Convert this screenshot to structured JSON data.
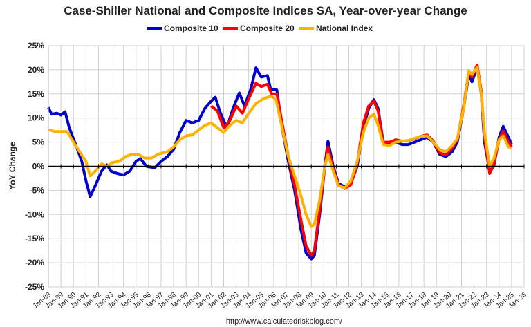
{
  "chart_data": {
    "type": "line",
    "title": "Case-Shiller National and Composite Indices SA, Year-over-year Change",
    "ylabel": "YoY Change",
    "xlabel": "",
    "source": "http://www.calculatedriskblog.com/",
    "ylim": [
      -25,
      25
    ],
    "yticks": [
      "25%",
      "20%",
      "15%",
      "10%",
      "5%",
      "0%",
      "-5%",
      "-10%",
      "-15%",
      "-20%",
      "-25%"
    ],
    "xticks": [
      "Jan-88",
      "Jan-89",
      "Jan-90",
      "Jan-91",
      "Jan-92",
      "Jan-93",
      "Jan-94",
      "Jan-95",
      "Jan-96",
      "Jan-97",
      "Jan-98",
      "Jan-99",
      "Jan-00",
      "Jan-01",
      "Jan-02",
      "Jan-03",
      "Jan-04",
      "Jan-05",
      "Jan-06",
      "Jan-07",
      "Jan-08",
      "Jan-09",
      "Jan-10",
      "Jan-11",
      "Jan-12",
      "Jan-13",
      "Jan-14",
      "Jan-15",
      "Jan-16",
      "Jan-17",
      "Jan-18",
      "Jan-19",
      "Jan-20",
      "Jan-21",
      "Jan-22",
      "Jan-23",
      "Jan-24",
      "Jan-25",
      "Jan-26"
    ],
    "grid": true,
    "legend": "top",
    "series": [
      {
        "name": "Composite 10",
        "color": "#0000CC",
        "points": [
          [
            "1988-01",
            12.2
          ],
          [
            "1988-04",
            10.8
          ],
          [
            "1988-09",
            11
          ],
          [
            "1989-01",
            10.6
          ],
          [
            "1989-05",
            11.3
          ],
          [
            "1989-09",
            8
          ],
          [
            "1990-04",
            4
          ],
          [
            "1990-09",
            1
          ],
          [
            "1991-01",
            -3
          ],
          [
            "1991-05",
            -6.3
          ],
          [
            "1991-10",
            -4
          ],
          [
            "1992-04",
            -1
          ],
          [
            "1992-09",
            0.3
          ],
          [
            "1993-01",
            -1
          ],
          [
            "1993-07",
            -1.5
          ],
          [
            "1994-01",
            -1.8
          ],
          [
            "1994-07",
            -1
          ],
          [
            "1995-01",
            1
          ],
          [
            "1995-05",
            1.6
          ],
          [
            "1995-11",
            0
          ],
          [
            "1996-07",
            -0.3
          ],
          [
            "1997-01",
            1
          ],
          [
            "1997-07",
            2
          ],
          [
            "1998-01",
            3.5
          ],
          [
            "1998-07",
            7
          ],
          [
            "1999-01",
            9.5
          ],
          [
            "1999-07",
            9
          ],
          [
            "2000-01",
            9.5
          ],
          [
            "2000-07",
            12
          ],
          [
            "2001-01",
            13.5
          ],
          [
            "2001-05",
            14.3
          ],
          [
            "2001-10",
            11
          ],
          [
            "2002-04",
            8
          ],
          [
            "2002-10",
            12
          ],
          [
            "2003-04",
            15.2
          ],
          [
            "2003-09",
            12.5
          ],
          [
            "2004-03",
            16
          ],
          [
            "2004-08",
            20.4
          ],
          [
            "2005-01",
            18.5
          ],
          [
            "2005-07",
            18.8
          ],
          [
            "2005-10",
            16
          ],
          [
            "2006-04",
            15.8
          ],
          [
            "2006-09",
            8
          ],
          [
            "2007-03",
            1
          ],
          [
            "2007-09",
            -5
          ],
          [
            "2008-03",
            -13
          ],
          [
            "2008-08",
            -18
          ],
          [
            "2009-01",
            -19.2
          ],
          [
            "2009-04",
            -18.5
          ],
          [
            "2009-09",
            -10
          ],
          [
            "2010-02",
            0
          ],
          [
            "2010-05",
            5.2
          ],
          [
            "2010-10",
            0
          ],
          [
            "2011-03",
            -3.5
          ],
          [
            "2011-09",
            -4.3
          ],
          [
            "2012-03",
            -3.5
          ],
          [
            "2012-09",
            0
          ],
          [
            "2013-03",
            8
          ],
          [
            "2013-08",
            12
          ],
          [
            "2014-01",
            13.8
          ],
          [
            "2014-05",
            12
          ],
          [
            "2014-10",
            5
          ],
          [
            "2015-04",
            4.5
          ],
          [
            "2015-10",
            5
          ],
          [
            "2016-04",
            4.5
          ],
          [
            "2016-10",
            4.5
          ],
          [
            "2017-04",
            5
          ],
          [
            "2017-10",
            5.5
          ],
          [
            "2018-04",
            6
          ],
          [
            "2018-10",
            5
          ],
          [
            "2019-04",
            2.5
          ],
          [
            "2019-10",
            2
          ],
          [
            "2020-04",
            3
          ],
          [
            "2020-09",
            5
          ],
          [
            "2021-03",
            12
          ],
          [
            "2021-08",
            19
          ],
          [
            "2021-11",
            17.5
          ],
          [
            "2022-04",
            20.5
          ],
          [
            "2022-08",
            15
          ],
          [
            "2022-11",
            5
          ],
          [
            "2023-04",
            -1
          ],
          [
            "2023-08",
            0
          ],
          [
            "2024-01",
            6
          ],
          [
            "2024-05",
            8.3
          ],
          [
            "2024-10",
            6
          ],
          [
            "2025-01",
            4.5
          ]
        ]
      },
      {
        "name": "Composite 20",
        "color": "#FF0000",
        "points": [
          [
            "2001-01",
            12.5
          ],
          [
            "2001-07",
            11.5
          ],
          [
            "2002-01",
            8
          ],
          [
            "2002-07",
            9.5
          ],
          [
            "2003-01",
            12.5
          ],
          [
            "2003-07",
            11
          ],
          [
            "2004-01",
            14
          ],
          [
            "2004-08",
            17.2
          ],
          [
            "2005-01",
            16.5
          ],
          [
            "2005-07",
            17
          ],
          [
            "2005-11",
            15
          ],
          [
            "2006-04",
            15
          ],
          [
            "2006-09",
            9
          ],
          [
            "2007-03",
            2
          ],
          [
            "2007-09",
            -4
          ],
          [
            "2008-03",
            -11
          ],
          [
            "2008-08",
            -16.5
          ],
          [
            "2009-01",
            -18.5
          ],
          [
            "2009-04",
            -17.5
          ],
          [
            "2009-09",
            -9
          ],
          [
            "2010-02",
            0
          ],
          [
            "2010-05",
            4
          ],
          [
            "2010-10",
            -0.5
          ],
          [
            "2011-03",
            -3.8
          ],
          [
            "2011-09",
            -4.6
          ],
          [
            "2012-03",
            -3.8
          ],
          [
            "2012-09",
            0.5
          ],
          [
            "2013-03",
            9
          ],
          [
            "2013-08",
            12.5
          ],
          [
            "2014-01",
            13.5
          ],
          [
            "2014-05",
            11.5
          ],
          [
            "2014-10",
            5
          ],
          [
            "2015-04",
            5
          ],
          [
            "2015-10",
            5.5
          ],
          [
            "2016-04",
            5.2
          ],
          [
            "2016-10",
            5.3
          ],
          [
            "2017-04",
            5.7
          ],
          [
            "2017-10",
            6.2
          ],
          [
            "2018-04",
            6.5
          ],
          [
            "2018-10",
            5.2
          ],
          [
            "2019-04",
            2.8
          ],
          [
            "2019-10",
            2.3
          ],
          [
            "2020-04",
            3.8
          ],
          [
            "2020-09",
            5.5
          ],
          [
            "2021-03",
            12.5
          ],
          [
            "2021-08",
            19.7
          ],
          [
            "2021-11",
            18.5
          ],
          [
            "2022-04",
            21
          ],
          [
            "2022-08",
            15.5
          ],
          [
            "2022-11",
            6
          ],
          [
            "2023-04",
            -1.5
          ],
          [
            "2023-08",
            0.3
          ],
          [
            "2024-01",
            5.5
          ],
          [
            "2024-05",
            7.3
          ],
          [
            "2024-10",
            5
          ],
          [
            "2025-01",
            4
          ]
        ]
      },
      {
        "name": "National Index",
        "color": "#FFB300",
        "points": [
          [
            "1988-01",
            7.6
          ],
          [
            "1988-07",
            7.2
          ],
          [
            "1989-01",
            7.2
          ],
          [
            "1989-07",
            7.2
          ],
          [
            "1990-01",
            5
          ],
          [
            "1990-07",
            3
          ],
          [
            "1991-01",
            1
          ],
          [
            "1991-05",
            -2
          ],
          [
            "1991-10",
            -1
          ],
          [
            "1992-04",
            0.5
          ],
          [
            "1992-09",
            0
          ],
          [
            "1993-03",
            0.8
          ],
          [
            "1993-09",
            1
          ],
          [
            "1994-03",
            2
          ],
          [
            "1994-09",
            2.5
          ],
          [
            "1995-03",
            2.5
          ],
          [
            "1995-09",
            1.7
          ],
          [
            "1996-04",
            1.7
          ],
          [
            "1996-10",
            2.5
          ],
          [
            "1997-07",
            3
          ],
          [
            "1998-01",
            4
          ],
          [
            "1998-07",
            5.5
          ],
          [
            "1999-01",
            6.3
          ],
          [
            "1999-07",
            6.5
          ],
          [
            "2000-01",
            7.5
          ],
          [
            "2000-07",
            8.5
          ],
          [
            "2001-01",
            9
          ],
          [
            "2001-07",
            8
          ],
          [
            "2002-01",
            7
          ],
          [
            "2002-07",
            8.5
          ],
          [
            "2003-01",
            9.5
          ],
          [
            "2003-07",
            9
          ],
          [
            "2004-01",
            11
          ],
          [
            "2004-08",
            13
          ],
          [
            "2005-03",
            14
          ],
          [
            "2005-10",
            14.5
          ],
          [
            "2006-03",
            14
          ],
          [
            "2006-09",
            8
          ],
          [
            "2007-03",
            2
          ],
          [
            "2007-09",
            -2
          ],
          [
            "2008-03",
            -6
          ],
          [
            "2008-08",
            -10
          ],
          [
            "2009-01",
            -12.5
          ],
          [
            "2009-04",
            -12
          ],
          [
            "2009-09",
            -7
          ],
          [
            "2010-02",
            0
          ],
          [
            "2010-05",
            2.5
          ],
          [
            "2010-10",
            -1
          ],
          [
            "2011-03",
            -4
          ],
          [
            "2011-09",
            -4.5
          ],
          [
            "2012-03",
            -3
          ],
          [
            "2012-09",
            1
          ],
          [
            "2013-03",
            7
          ],
          [
            "2013-08",
            10
          ],
          [
            "2014-01",
            10.8
          ],
          [
            "2014-05",
            8.5
          ],
          [
            "2014-10",
            4.5
          ],
          [
            "2015-04",
            4.3
          ],
          [
            "2015-10",
            5
          ],
          [
            "2016-04",
            5.2
          ],
          [
            "2016-10",
            5.3
          ],
          [
            "2017-04",
            5.8
          ],
          [
            "2017-10",
            6.2
          ],
          [
            "2018-04",
            6.3
          ],
          [
            "2018-10",
            5
          ],
          [
            "2019-04",
            3.5
          ],
          [
            "2019-10",
            3
          ],
          [
            "2020-04",
            4.3
          ],
          [
            "2020-09",
            5.7
          ],
          [
            "2021-03",
            12
          ],
          [
            "2021-08",
            19.8
          ],
          [
            "2021-11",
            19
          ],
          [
            "2022-04",
            20.5
          ],
          [
            "2022-08",
            15
          ],
          [
            "2022-11",
            7
          ],
          [
            "2023-04",
            0
          ],
          [
            "2023-08",
            1.5
          ],
          [
            "2024-01",
            5.5
          ],
          [
            "2024-05",
            6.3
          ],
          [
            "2024-10",
            4
          ],
          [
            "2025-01",
            3.7
          ]
        ]
      }
    ]
  }
}
